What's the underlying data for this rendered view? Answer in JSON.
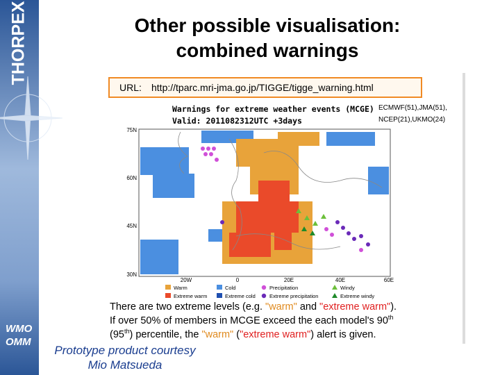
{
  "sidebar": {
    "brand": "THORPEX",
    "org": [
      "WMO",
      "OMM"
    ]
  },
  "header": {
    "title": [
      "Other possible visualisation:",
      "combined warnings"
    ]
  },
  "url_box": {
    "label": "URL:",
    "url": "http://tparc.mri-jma.go.jp/TIGGE/tigge_warning.html"
  },
  "map": {
    "title": "Warnings for extreme weather events (MCGE)",
    "valid": "Valid: 2011082312UTC +3days",
    "models": [
      "ECMWF(51),JMA(51),",
      "NCEP(21),UKMO(24)"
    ],
    "lat_labels": [
      "75N",
      "60N",
      "45N",
      "30N"
    ],
    "lon_labels": [
      "20W",
      "0",
      "20E",
      "40E",
      "60E"
    ],
    "legend": [
      {
        "label": "Warm",
        "color": "#e8a33a",
        "shape": "square"
      },
      {
        "label": "Cold",
        "color": "#4b8fe0",
        "shape": "square"
      },
      {
        "label": "Precipitation",
        "color": "#d050d8",
        "shape": "circle"
      },
      {
        "label": "Windy",
        "color": "#6cbf3a",
        "shape": "triangle"
      },
      {
        "label": "Extreme warm",
        "color": "#ea4a2a",
        "shape": "square"
      },
      {
        "label": "Extreme cold",
        "color": "#1f4fb0",
        "shape": "square"
      },
      {
        "label": "Extreme precipitation",
        "color": "#6a2ab8",
        "shape": "circle"
      },
      {
        "label": "Extreme windy",
        "color": "#1f8a2a",
        "shape": "triangle"
      }
    ]
  },
  "caption": {
    "line1": [
      "There are two extreme levels (e.g. ",
      "\"warm\"",
      " and ",
      "\"extreme warm\"",
      ")."
    ],
    "line2": [
      "If over 50% of members in MCGE exceed the each model's 90",
      "th"
    ],
    "line3": [
      "(95",
      "th",
      ") percentile, the ",
      "\"warm\"",
      " (",
      "\"extreme warm\"",
      ") alert is given."
    ]
  },
  "credit": [
    "Prototype product courtesy",
    "Mio Matsueda"
  ]
}
